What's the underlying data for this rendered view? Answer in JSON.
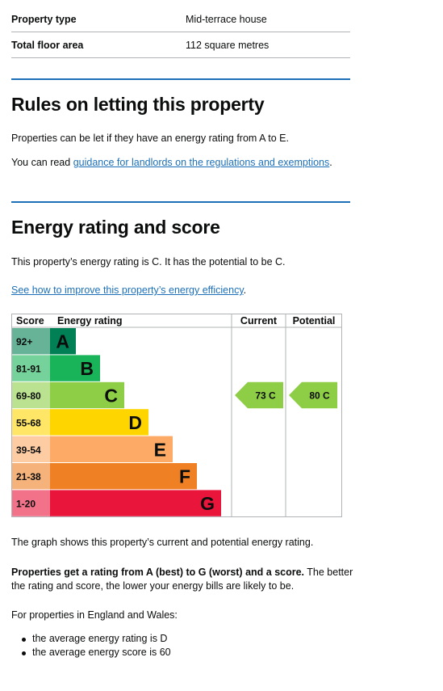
{
  "summary": [
    {
      "key": "Property type",
      "value": "Mid-terrace house"
    },
    {
      "key": "Total floor area",
      "value": "112 square metres"
    }
  ],
  "letting": {
    "heading": "Rules on letting this property",
    "para1": "Properties can be let if they have an energy rating from A to E.",
    "para2_prefix": "You can read ",
    "para2_link": "guidance for landlords on the regulations and exemptions",
    "para2_suffix": "."
  },
  "energy": {
    "heading": "Energy rating and score",
    "para1": "This property’s energy rating is C. It has the potential to be C.",
    "link": "See how to improve this property’s energy efficiency",
    "link_suffix": ".",
    "graph_note": "The graph shows this property’s current and potential energy rating.",
    "bold_text": "Properties get a rating from A (best) to G (worst) and a score.",
    "rest_line1": " The better",
    "rest_line2": "the rating and score, the lower your energy bills are likely to be.",
    "england_wales": "For properties in England and Wales:",
    "bullets": [
      "the average energy rating is D",
      "the average energy score is 60"
    ]
  },
  "chart_data": {
    "type": "table",
    "headers": {
      "score": "Score",
      "rating": "Energy rating",
      "current": "Current",
      "potential": "Potential"
    },
    "bands": [
      {
        "score": "92+",
        "letter": "A",
        "color": "#008054"
      },
      {
        "score": "81-91",
        "letter": "B",
        "color": "#19b459"
      },
      {
        "score": "69-80",
        "letter": "C",
        "color": "#8dce46"
      },
      {
        "score": "55-68",
        "letter": "D",
        "color": "#ffd500"
      },
      {
        "score": "39-54",
        "letter": "E",
        "color": "#fcaa65"
      },
      {
        "score": "21-38",
        "letter": "F",
        "color": "#ef8023"
      },
      {
        "score": "1-20",
        "letter": "G",
        "color": "#e9153b"
      }
    ],
    "current": {
      "score": 73,
      "letter": "C",
      "label": "73 C",
      "color": "#8dce46"
    },
    "potential": {
      "score": 80,
      "letter": "C",
      "label": "80 C",
      "color": "#8dce46"
    }
  }
}
